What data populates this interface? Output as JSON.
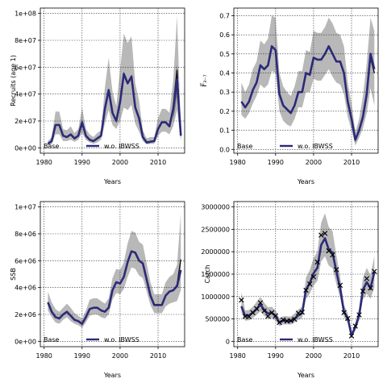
{
  "colors": {
    "band": "#b8b8b8",
    "band_alt": "#7f7f7f",
    "line_main": "#2b2a78",
    "line_base": "#111111",
    "grid": "#333333",
    "obs": "#000000"
  },
  "chart_data": [
    {
      "type": "line",
      "xlabel": "Years",
      "ylabel": "Recruits (age 1)",
      "xlim": [
        1979,
        2017
      ],
      "ylim": [
        -4000000,
        104000000
      ],
      "xticks": [
        1980,
        1990,
        2000,
        2010
      ],
      "yticks": [
        0,
        20000000,
        40000000,
        60000000,
        80000000,
        100000000
      ],
      "ytick_labels": [
        "0e+00",
        "2e+07",
        "4e+07",
        "6e+07",
        "8e+07",
        "1e+08"
      ],
      "legend": [
        "Base",
        "w.o. IBWSS"
      ],
      "x": [
        1981,
        1982,
        1983,
        1984,
        1985,
        1986,
        1987,
        1988,
        1989,
        1990,
        1991,
        1992,
        1993,
        1994,
        1995,
        1996,
        1997,
        1998,
        1999,
        2000,
        2001,
        2002,
        2003,
        2004,
        2005,
        2006,
        2007,
        2008,
        2009,
        2010,
        2011,
        2012,
        2013,
        2014,
        2015,
        2016
      ],
      "series": [
        {
          "name": "w.o. IBWSS",
          "values": [
            3000000,
            5000000,
            17000000,
            17000000,
            9000000,
            8000000,
            10000000,
            7000000,
            9000000,
            19000000,
            9000000,
            6000000,
            5000000,
            7000000,
            9000000,
            29000000,
            43000000,
            26000000,
            20000000,
            34000000,
            55000000,
            48000000,
            53000000,
            30000000,
            22000000,
            8000000,
            4000000,
            4500000,
            5000000,
            14000000,
            19000000,
            19000000,
            16000000,
            29000000,
            51000000,
            9000000
          ]
        },
        {
          "name": "Base",
          "values": [
            3000000,
            5000000,
            17000000,
            17000000,
            9000000,
            8000000,
            10000000,
            7000000,
            9000000,
            19000000,
            9000000,
            6000000,
            5000000,
            7000000,
            9000000,
            29000000,
            43000000,
            26000000,
            20000000,
            34000000,
            55000000,
            48000000,
            53000000,
            30000000,
            22000000,
            8000000,
            4000000,
            4500000,
            5000000,
            14000000,
            19000000,
            19000000,
            16000000,
            29000000,
            58000000,
            9000000
          ]
        }
      ],
      "band_lower": [
        1500000,
        2500000,
        10000000,
        10000000,
        5000000,
        5000000,
        6000000,
        4500000,
        6000000,
        11000000,
        6000000,
        4000000,
        3000000,
        4000000,
        6000000,
        18000000,
        28000000,
        17000000,
        14000000,
        20000000,
        30000000,
        28000000,
        32000000,
        18000000,
        12000000,
        5000000,
        2500000,
        3000000,
        3000000,
        9000000,
        12000000,
        12000000,
        10000000,
        16000000,
        28000000,
        5000000
      ],
      "band_upper": [
        5000000,
        8000000,
        27000000,
        27000000,
        14000000,
        13000000,
        16000000,
        11000000,
        14000000,
        30000000,
        14000000,
        10000000,
        8000000,
        11000000,
        13000000,
        45000000,
        67000000,
        42000000,
        31000000,
        58000000,
        85000000,
        78000000,
        83000000,
        48000000,
        35000000,
        13000000,
        7000000,
        8000000,
        8000000,
        22000000,
        29000000,
        29000000,
        26000000,
        50000000,
        98000000,
        14000000
      ],
      "band_alt_years": [
        2014,
        2015,
        2016
      ],
      "band_alt_lower": [
        20000000,
        38000000,
        7000000
      ],
      "band_alt_upper": [
        38000000,
        62000000,
        11000000
      ]
    },
    {
      "type": "line",
      "xlabel": "Years",
      "ylabel": "F̅₃₋₇",
      "xlim": [
        1979,
        2017
      ],
      "ylim": [
        -0.02,
        0.74
      ],
      "xticks": [
        1980,
        1990,
        2000,
        2010
      ],
      "yticks": [
        0,
        0.1,
        0.2,
        0.3,
        0.4,
        0.5,
        0.6,
        0.7
      ],
      "ytick_labels": [
        "0.0",
        "0.1",
        "0.2",
        "0.3",
        "0.4",
        "0.5",
        "0.6",
        "0.7"
      ],
      "legend": [
        "Base",
        "w.o. IBWSS"
      ],
      "x": [
        1981,
        1982,
        1983,
        1984,
        1985,
        1986,
        1987,
        1988,
        1989,
        1990,
        1991,
        1992,
        1993,
        1994,
        1995,
        1996,
        1997,
        1998,
        1999,
        2000,
        2001,
        2002,
        2003,
        2004,
        2005,
        2006,
        2007,
        2008,
        2009,
        2010,
        2011,
        2012,
        2013,
        2014,
        2015,
        2016
      ],
      "series": [
        {
          "name": "w.o. IBWSS",
          "values": [
            0.25,
            0.22,
            0.25,
            0.31,
            0.35,
            0.44,
            0.42,
            0.44,
            0.54,
            0.52,
            0.29,
            0.23,
            0.21,
            0.19,
            0.23,
            0.3,
            0.3,
            0.4,
            0.39,
            0.48,
            0.47,
            0.47,
            0.5,
            0.54,
            0.5,
            0.46,
            0.46,
            0.4,
            0.25,
            0.16,
            0.05,
            0.1,
            0.17,
            0.29,
            0.5,
            0.42
          ]
        },
        {
          "name": "Base",
          "values": [
            0.25,
            0.22,
            0.25,
            0.31,
            0.35,
            0.44,
            0.42,
            0.44,
            0.54,
            0.52,
            0.29,
            0.23,
            0.21,
            0.19,
            0.23,
            0.3,
            0.3,
            0.4,
            0.39,
            0.48,
            0.47,
            0.47,
            0.5,
            0.54,
            0.5,
            0.46,
            0.46,
            0.4,
            0.25,
            0.16,
            0.05,
            0.1,
            0.17,
            0.29,
            0.48,
            0.4
          ]
        }
      ],
      "band_lower": [
        0.18,
        0.16,
        0.19,
        0.24,
        0.28,
        0.34,
        0.32,
        0.34,
        0.41,
        0.4,
        0.2,
        0.15,
        0.13,
        0.12,
        0.16,
        0.22,
        0.22,
        0.3,
        0.3,
        0.37,
        0.36,
        0.36,
        0.39,
        0.42,
        0.38,
        0.35,
        0.34,
        0.29,
        0.17,
        0.1,
        0.02,
        0.06,
        0.11,
        0.19,
        0.32,
        0.23
      ],
      "band_upper": [
        0.35,
        0.3,
        0.34,
        0.42,
        0.46,
        0.57,
        0.55,
        0.58,
        0.7,
        0.69,
        0.4,
        0.33,
        0.3,
        0.28,
        0.33,
        0.41,
        0.41,
        0.52,
        0.51,
        0.62,
        0.61,
        0.61,
        0.64,
        0.69,
        0.66,
        0.61,
        0.6,
        0.54,
        0.35,
        0.24,
        0.09,
        0.16,
        0.28,
        0.45,
        0.69,
        0.62
      ]
    },
    {
      "type": "line",
      "xlabel": "Years",
      "ylabel": "SSB",
      "xlim": [
        1979,
        2017
      ],
      "ylim": [
        -400000,
        10400000
      ],
      "xticks": [
        1980,
        1990,
        2000,
        2010
      ],
      "yticks": [
        0,
        2000000,
        4000000,
        6000000,
        8000000,
        10000000
      ],
      "ytick_labels": [
        "0e+00",
        "2e+06",
        "4e+06",
        "6e+06",
        "8e+06",
        "1e+07"
      ],
      "legend": [
        "Base",
        "w.o. IBWSS"
      ],
      "x": [
        1981,
        1982,
        1983,
        1984,
        1985,
        1986,
        1987,
        1988,
        1989,
        1990,
        1991,
        1992,
        1993,
        1994,
        1995,
        1996,
        1997,
        1998,
        1999,
        2000,
        2001,
        2002,
        2003,
        2004,
        2005,
        2006,
        2007,
        2008,
        2009,
        2010,
        2011,
        2012,
        2013,
        2014,
        2015,
        2016
      ],
      "series": [
        {
          "name": "w.o. IBWSS",
          "values": [
            2900000,
            2200000,
            1800000,
            1700000,
            2000000,
            2200000,
            1900000,
            1600000,
            1500000,
            1300000,
            1800000,
            2400000,
            2500000,
            2500000,
            2300000,
            2200000,
            2500000,
            3800000,
            4400000,
            4300000,
            4800000,
            5900000,
            6700000,
            6600000,
            6000000,
            5800000,
            4600000,
            3400000,
            2700000,
            2700000,
            2700000,
            3400000,
            3700000,
            3800000,
            4100000,
            5300000
          ]
        },
        {
          "name": "Base",
          "values": [
            2900000,
            2200000,
            1800000,
            1700000,
            2000000,
            2200000,
            1900000,
            1600000,
            1500000,
            1300000,
            1800000,
            2400000,
            2500000,
            2500000,
            2300000,
            2200000,
            2500000,
            3800000,
            4400000,
            4300000,
            4800000,
            5900000,
            6700000,
            6600000,
            6000000,
            5800000,
            4600000,
            3400000,
            2700000,
            2700000,
            2700000,
            3400000,
            3700000,
            3800000,
            4200000,
            6100000
          ]
        }
      ],
      "band_lower": [
        2300000,
        1800000,
        1400000,
        1300000,
        1600000,
        1800000,
        1500000,
        1300000,
        1200000,
        1000000,
        1400000,
        1900000,
        2000000,
        2000000,
        1800000,
        1700000,
        2000000,
        3100000,
        3600000,
        3500000,
        3900000,
        4800000,
        5500000,
        5400000,
        4900000,
        4700000,
        3700000,
        2700000,
        2100000,
        2100000,
        2100000,
        2600000,
        2800000,
        2900000,
        3000000,
        3800000
      ],
      "band_upper": [
        3700000,
        2900000,
        2400000,
        2200000,
        2500000,
        2800000,
        2500000,
        2100000,
        1900000,
        1700000,
        2300000,
        3100000,
        3200000,
        3200000,
        3000000,
        2800000,
        3200000,
        4700000,
        5400000,
        5300000,
        5900000,
        7300000,
        8200000,
        8100000,
        7400000,
        7200000,
        5800000,
        4400000,
        3500000,
        3500000,
        3500000,
        4400000,
        4800000,
        5000000,
        5700000,
        9500000
      ]
    },
    {
      "type": "line",
      "xlabel": "Years",
      "ylabel": "Catch",
      "xlim": [
        1979,
        2017
      ],
      "ylim": [
        -120000,
        3120000
      ],
      "xticks": [
        1980,
        1990,
        2000,
        2010
      ],
      "yticks": [
        0,
        500000,
        1000000,
        1500000,
        2000000,
        2500000,
        3000000
      ],
      "ytick_labels": [
        "0",
        "500000",
        "1000000",
        "1500000",
        "2000000",
        "2500000",
        "3000000"
      ],
      "legend": [
        "Base",
        "w.o. IBWSS"
      ],
      "x": [
        1981,
        1982,
        1983,
        1984,
        1985,
        1986,
        1987,
        1988,
        1989,
        1990,
        1991,
        1992,
        1993,
        1994,
        1995,
        1996,
        1997,
        1998,
        1999,
        2000,
        2001,
        2002,
        2003,
        2004,
        2005,
        2006,
        2007,
        2008,
        2009,
        2010,
        2011,
        2012,
        2013,
        2014,
        2015,
        2016
      ],
      "series": [
        {
          "name": "w.o. IBWSS",
          "values": [
            780000,
            560000,
            580000,
            640000,
            720000,
            820000,
            700000,
            620000,
            640000,
            560000,
            420000,
            460000,
            460000,
            450000,
            510000,
            580000,
            630000,
            1150000,
            1300000,
            1520000,
            1640000,
            2150000,
            2300000,
            2050000,
            1980000,
            1560000,
            1180000,
            660000,
            520000,
            130000,
            320000,
            580000,
            1150000,
            1320000,
            1190000,
            1540000
          ]
        },
        {
          "name": "Base",
          "values": [
            780000,
            560000,
            580000,
            640000,
            720000,
            820000,
            700000,
            620000,
            640000,
            560000,
            420000,
            460000,
            460000,
            450000,
            510000,
            580000,
            630000,
            1150000,
            1300000,
            1520000,
            1640000,
            2150000,
            2300000,
            2050000,
            1980000,
            1560000,
            1180000,
            660000,
            520000,
            130000,
            320000,
            580000,
            1150000,
            1320000,
            1170000,
            1520000
          ]
        }
      ],
      "band_lower": [
        640000,
        460000,
        470000,
        520000,
        590000,
        670000,
        570000,
        510000,
        520000,
        460000,
        340000,
        380000,
        380000,
        370000,
        420000,
        480000,
        520000,
        950000,
        1060000,
        1250000,
        1340000,
        1780000,
        1900000,
        1690000,
        1630000,
        1280000,
        970000,
        540000,
        420000,
        90000,
        240000,
        460000,
        930000,
        1060000,
        950000,
        1200000
      ],
      "band_upper": [
        1100000,
        690000,
        700000,
        770000,
        880000,
        990000,
        860000,
        760000,
        770000,
        690000,
        520000,
        560000,
        560000,
        550000,
        620000,
        710000,
        770000,
        1420000,
        1590000,
        1860000,
        2000000,
        2650000,
        2860000,
        2550000,
        2460000,
        1920000,
        1450000,
        810000,
        630000,
        190000,
        420000,
        730000,
        1420000,
        1640000,
        1480000,
        1900000
      ],
      "observations": {
        "x": [
          1981,
          1982,
          1983,
          1984,
          1985,
          1986,
          1987,
          1988,
          1989,
          1990,
          1991,
          1992,
          1993,
          1994,
          1995,
          1996,
          1997,
          1998,
          1999,
          2000,
          2001,
          2002,
          2003,
          2004,
          2005,
          2006,
          2007,
          2008,
          2009,
          2010,
          2011,
          2012,
          2013,
          2014,
          2015,
          2016
        ],
        "y": [
          920000,
          560000,
          550000,
          640000,
          730000,
          860000,
          680000,
          560000,
          640000,
          570000,
          420000,
          480000,
          450000,
          460000,
          490000,
          630000,
          650000,
          1140000,
          1280000,
          1440000,
          1770000,
          2370000,
          2410000,
          2020000,
          1930000,
          1600000,
          1250000,
          640000,
          510000,
          120000,
          340000,
          590000,
          1120000,
          1400000,
          1190000,
          1560000
        ]
      }
    }
  ]
}
